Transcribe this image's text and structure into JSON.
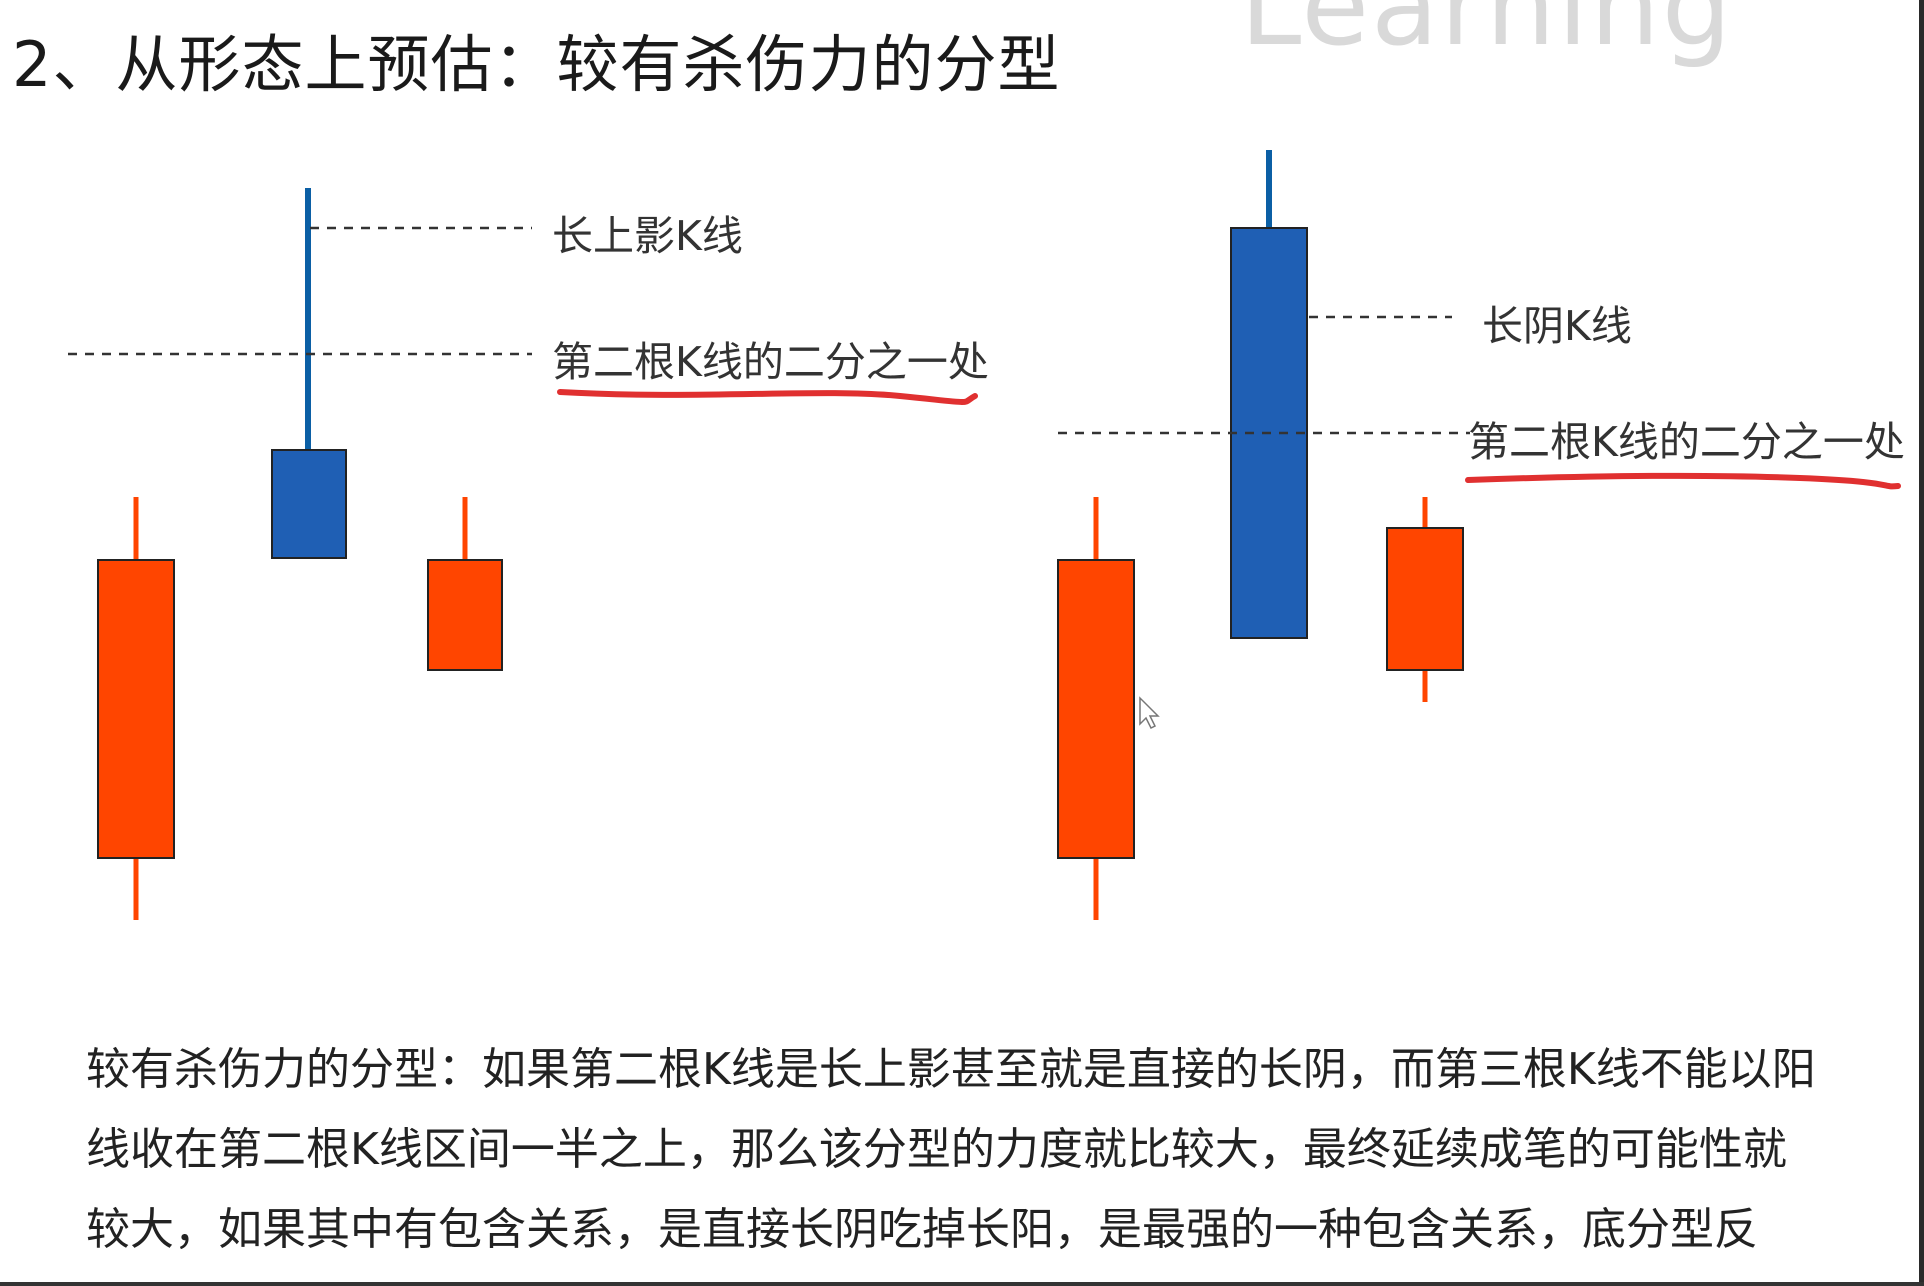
{
  "watermark": "Learning",
  "title": "2、从形态上预估：较有杀伤力的分型",
  "colors": {
    "bull": "#ff4500",
    "bear": "#1f5fb4",
    "wick_blue": "#0b5fa5",
    "outline": "#222222",
    "annotation_underline": "#e03030",
    "dash": "#333333"
  },
  "left_pattern": {
    "label_shadow": "长上影K线",
    "label_half": "第二根K线的二分之一处"
  },
  "right_pattern": {
    "label_body": "长阴K线",
    "label_half": "第二根K线的二分之一处"
  },
  "description": "较有杀伤力的分型：如果第二根K线是长上影甚至就是直接的长阴，而第三根K线不能以阳线收在第二根K线区间一半之上，那么该分型的力度就比较大，最终延续成笔的可能性就较大，如果其中有包含关系，是直接长阴吃掉长阳，是最强的一种包含关系，底分型反之。"
}
